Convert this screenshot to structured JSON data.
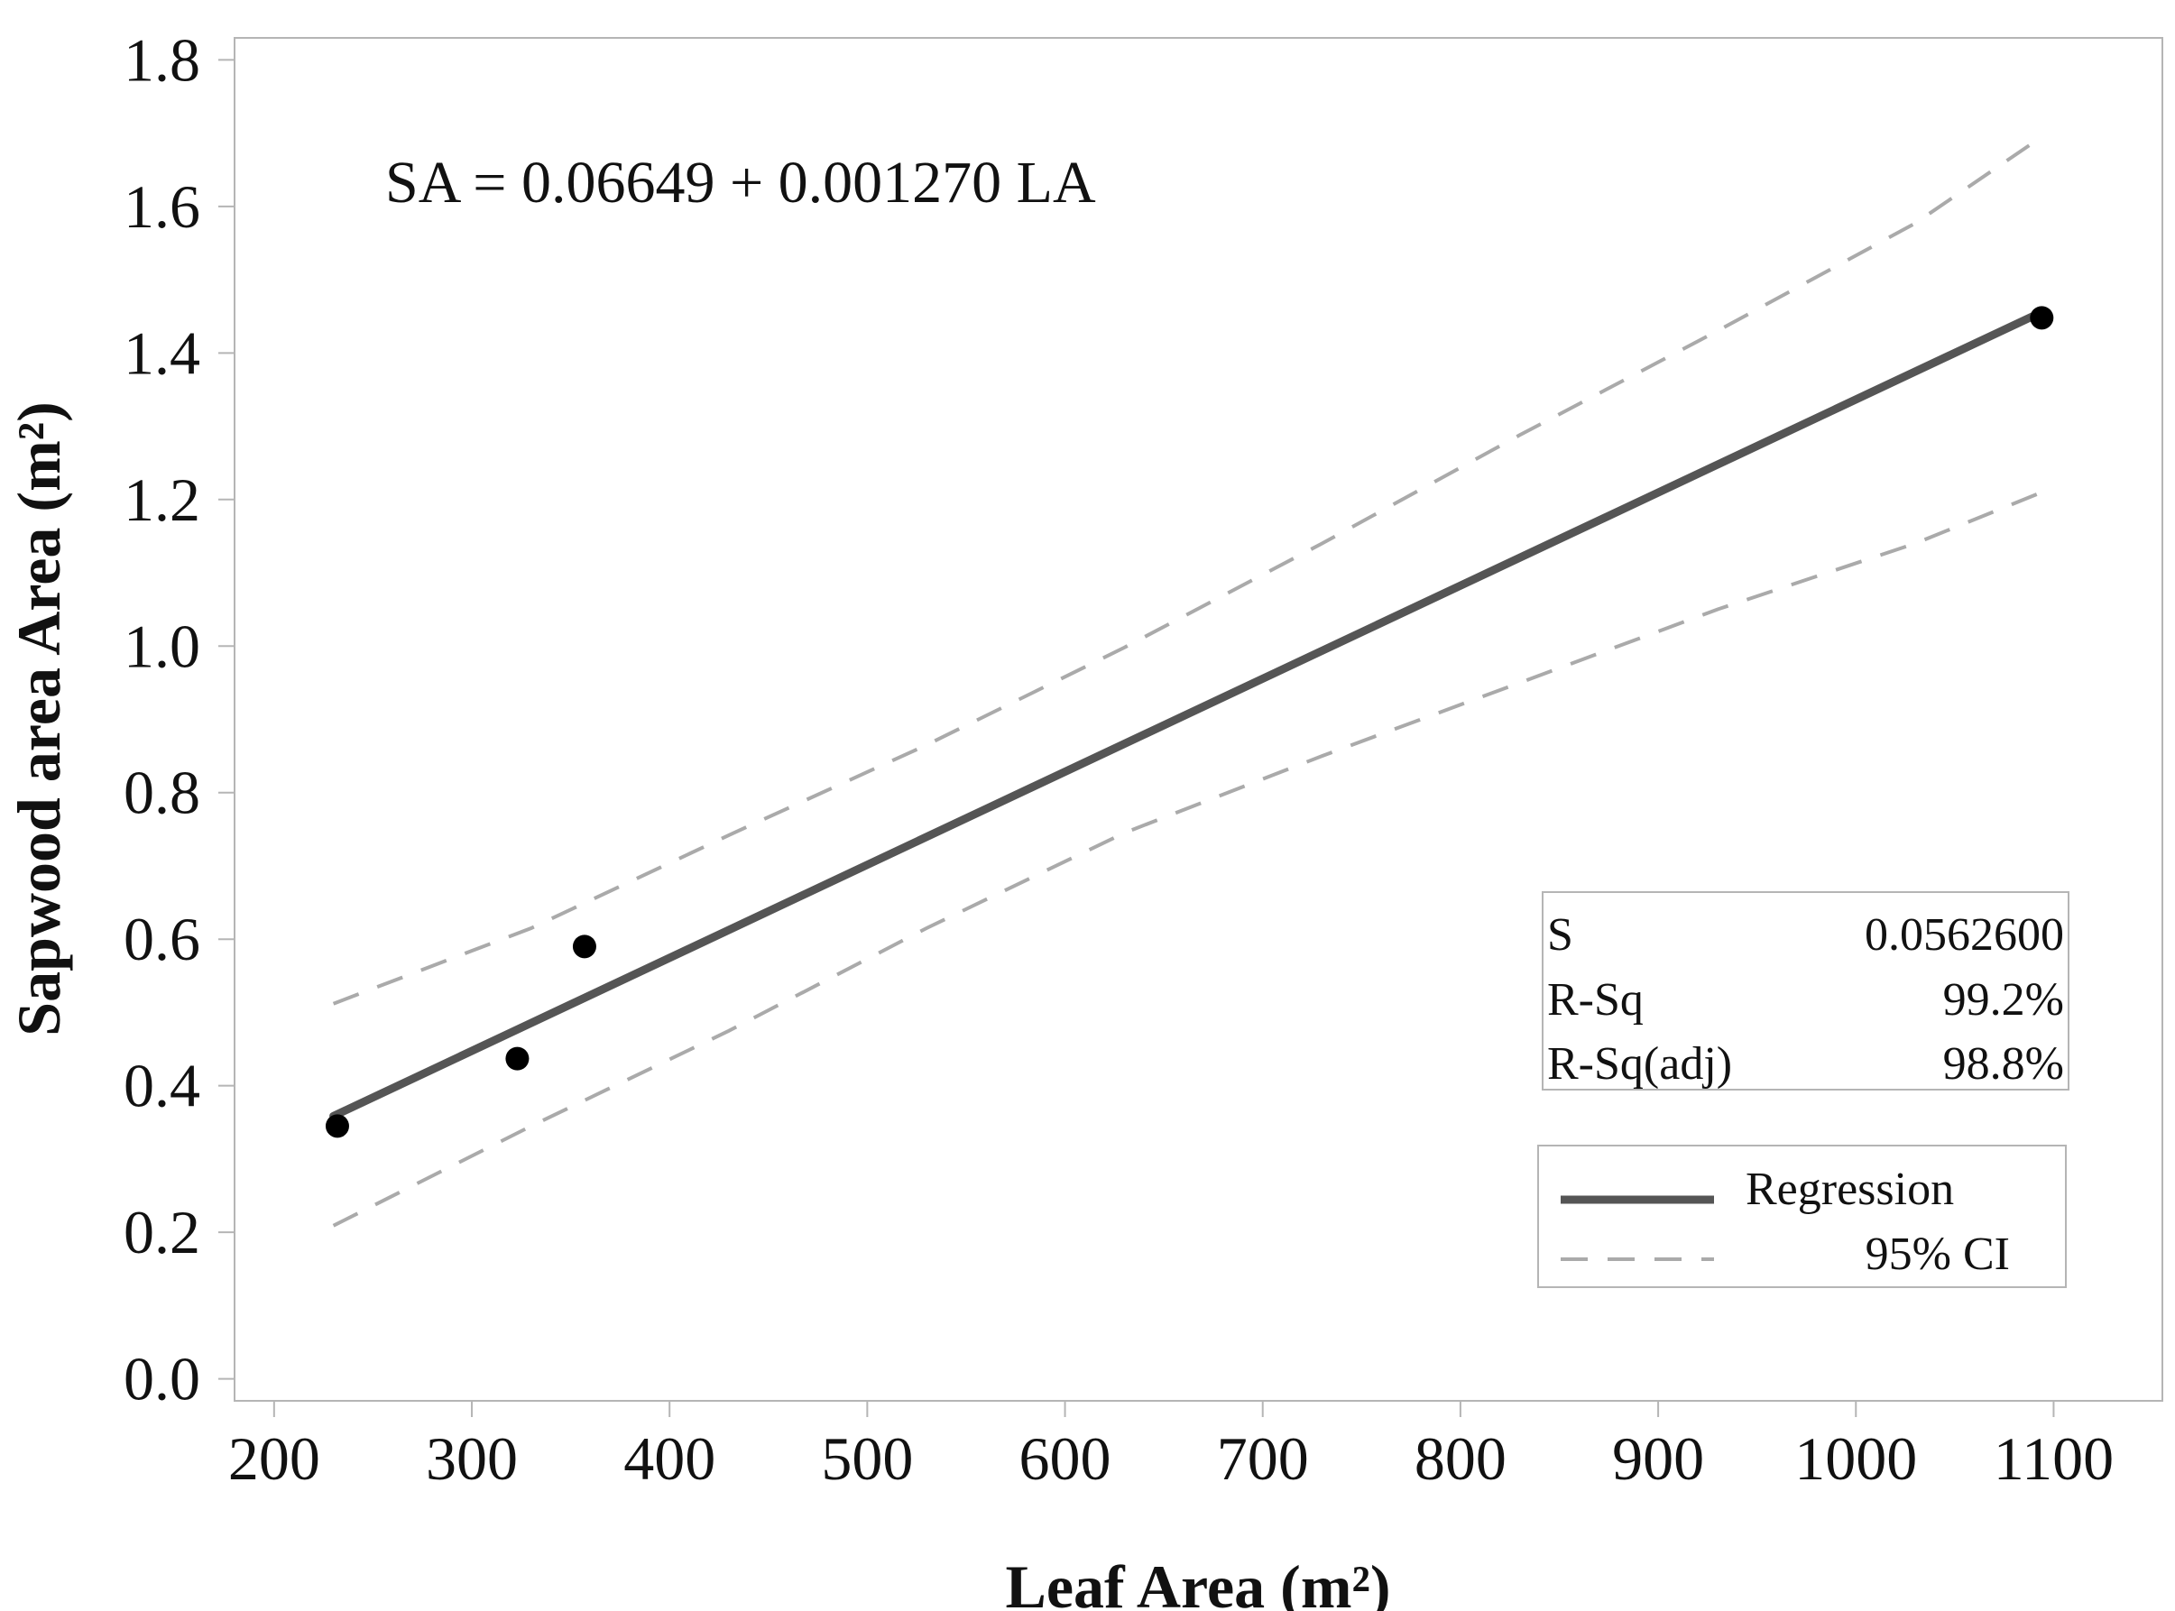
{
  "chart_data": {
    "type": "scatter",
    "title": "",
    "xlabel": "Leaf Area (m²)",
    "ylabel": "Sapwood area Area (m²)",
    "xlim": [
      180,
      1155
    ],
    "ylim": [
      -0.03,
      1.83
    ],
    "x_ticks": [
      200,
      300,
      400,
      500,
      600,
      700,
      800,
      900,
      1000,
      1100
    ],
    "x_tick_labels": [
      "200",
      "300",
      "400",
      "500",
      "600",
      "700",
      "800",
      "900",
      "1000",
      "1100"
    ],
    "y_ticks": [
      0.0,
      0.2,
      0.4,
      0.6,
      0.8,
      1.0,
      1.2,
      1.4,
      1.6,
      1.8
    ],
    "y_tick_labels": [
      "0.0",
      "0.2",
      "0.4",
      "0.6",
      "0.8",
      "1.0",
      "1.2",
      "1.4",
      "1.6",
      "1.8"
    ],
    "grid": false,
    "points": {
      "name": "Observations",
      "x": [
        232,
        323,
        357,
        1094
      ],
      "y": [
        0.345,
        0.437,
        0.59,
        1.448
      ]
    },
    "regression": {
      "name": "Regression",
      "x": [
        230,
        1094
      ],
      "y": [
        0.3586,
        1.4559
      ],
      "color": "#555555"
    },
    "ci_upper": {
      "name": "95% CI",
      "x": [
        230,
        330,
        430,
        530,
        630,
        730,
        830,
        930,
        1030,
        1094
      ],
      "y": [
        0.512,
        0.615,
        0.742,
        0.865,
        0.998,
        1.14,
        1.288,
        1.43,
        1.577,
        1.695
      ],
      "color": "#aaaaaa"
    },
    "ci_lower": {
      "name": "95% CI",
      "x": [
        230,
        330,
        430,
        530,
        630,
        730,
        830,
        930,
        1030,
        1094
      ],
      "y": [
        0.209,
        0.345,
        0.475,
        0.615,
        0.745,
        0.85,
        0.95,
        1.05,
        1.14,
        1.21
      ],
      "color": "#aaaaaa"
    },
    "equation": "SA = 0.06649 + 0.001270 LA",
    "stats": [
      {
        "label": "S",
        "value": "0.0562600"
      },
      {
        "label": "R-Sq",
        "value": "99.2%"
      },
      {
        "label": "R-Sq(adj)",
        "value": "98.8%"
      }
    ],
    "legend": [
      {
        "label": "Regression",
        "style": "solid"
      },
      {
        "label": "95% CI",
        "style": "dashed"
      }
    ],
    "legend_position": "bottom-right"
  }
}
